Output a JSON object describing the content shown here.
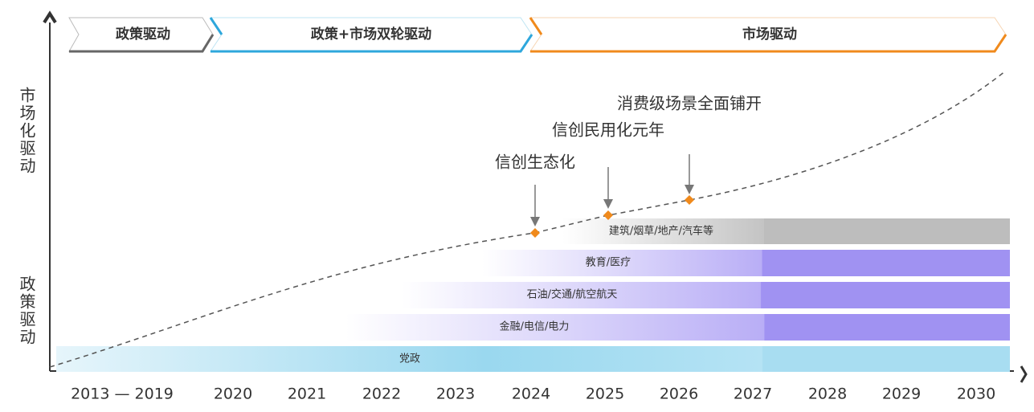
{
  "phases": [
    {
      "label": "政策驱动"
    },
    {
      "label": "政策+市场双轮驱动"
    },
    {
      "label": "市场驱动"
    }
  ],
  "axis_labels": {
    "upper": "市场化驱动",
    "lower": "政策驱动"
  },
  "years": [
    "2013 — 2019",
    "2020",
    "2021",
    "2022",
    "2023",
    "2024",
    "2025",
    "2026",
    "2027",
    "2028",
    "2029",
    "2030"
  ],
  "bands": [
    {
      "label": "建筑/烟草/地产/汽车等"
    },
    {
      "label": "教育/医疗"
    },
    {
      "label": "石油/交通/航空航天"
    },
    {
      "label": "金融/电信/电力"
    },
    {
      "label": "党政"
    }
  ],
  "milestones": [
    {
      "label": "信创生态化"
    },
    {
      "label": "信创民用化元年"
    },
    {
      "label": "消费级场景全面铺开"
    }
  ]
}
